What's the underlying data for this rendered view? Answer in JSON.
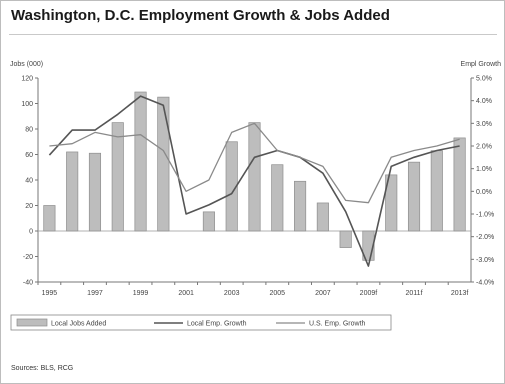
{
  "title": "Washington, D.C. Employment Growth & Jobs Added",
  "source": "Sources: BLS, RCG",
  "chart_data": {
    "type": "bar",
    "title": "Washington, D.C. Employment Growth & Jobs Added",
    "ylabel_left": "Jobs (000)",
    "ylabel_right": "Empl Growth",
    "y_left_range": [
      -40,
      120
    ],
    "y_left_ticks": [
      "-40",
      "-20",
      "0",
      "20",
      "40",
      "60",
      "80",
      "100",
      "120"
    ],
    "y_right_range": [
      -4.0,
      5.0
    ],
    "y_right_ticks": [
      "-4.0%",
      "-3.0%",
      "-2.0%",
      "-1.0%",
      "0.0%",
      "1.0%",
      "2.0%",
      "3.0%",
      "4.0%",
      "5.0%"
    ],
    "x_tick_labels": [
      "1995",
      "1997",
      "1999",
      "2001",
      "2003",
      "2005",
      "2007",
      "2009f",
      "2011f",
      "2013f"
    ],
    "categories": [
      "1995",
      "1996",
      "1997",
      "1998",
      "1999",
      "2000",
      "2001",
      "2002",
      "2003",
      "2004",
      "2005",
      "2006",
      "2007",
      "2008",
      "2009f",
      "2010f",
      "2011f",
      "2012f",
      "2013f"
    ],
    "grid": false,
    "legend_position": "bottom",
    "series": [
      {
        "name": "Local Jobs Added",
        "type": "bar",
        "axis": "left",
        "color": "#bdbdbd",
        "values": [
          20,
          62,
          61,
          85,
          109,
          105,
          0,
          15,
          70,
          85,
          52,
          39,
          22,
          -13,
          -23,
          44,
          54,
          63,
          73
        ]
      },
      {
        "name": "Local Emp. Growth",
        "type": "line",
        "axis": "right",
        "color": "#555555",
        "values": [
          1.6,
          2.7,
          2.7,
          3.4,
          4.2,
          3.8,
          -1.0,
          -0.6,
          -0.1,
          1.5,
          1.8,
          1.5,
          0.8,
          -0.9,
          -3.3,
          1.1,
          1.5,
          1.8,
          2.0
        ]
      },
      {
        "name": "U.S. Emp. Growth",
        "type": "line",
        "axis": "right",
        "color": "#8a8a8a",
        "values": [
          2.0,
          2.1,
          2.6,
          2.4,
          2.5,
          1.8,
          0.0,
          0.5,
          2.6,
          3.0,
          1.8,
          1.5,
          1.1,
          -0.4,
          -0.5,
          1.5,
          1.8,
          2.0,
          2.3
        ]
      }
    ]
  }
}
